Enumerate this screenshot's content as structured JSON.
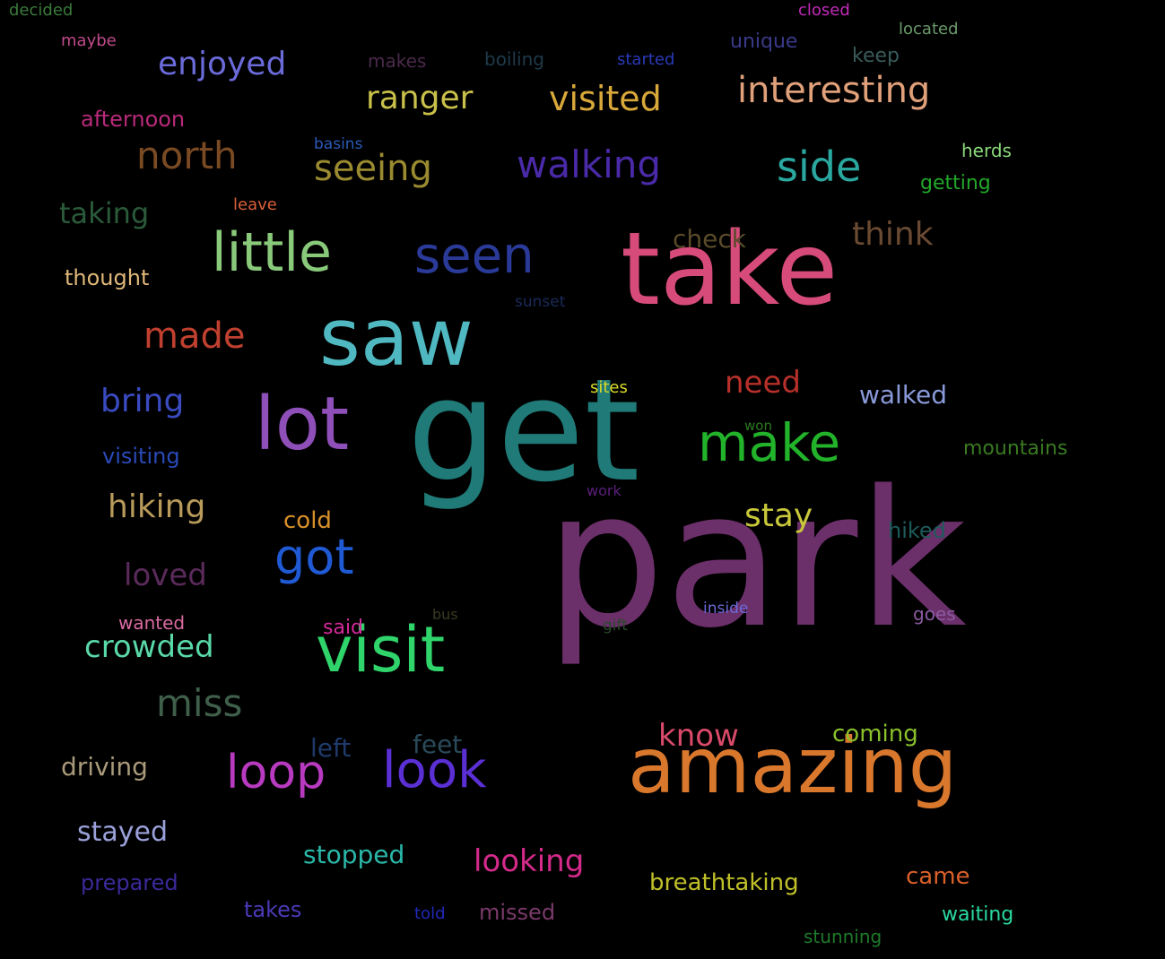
{
  "words": [
    {
      "text": "park",
      "color": "#6b2f6a"
    },
    {
      "text": "get",
      "color": "#1f7a78"
    },
    {
      "text": "take",
      "color": "#d64b7a"
    },
    {
      "text": "saw",
      "color": "#4fb8c0"
    },
    {
      "text": "amazing",
      "color": "#d9782c"
    },
    {
      "text": "visit",
      "color": "#2fd46a"
    },
    {
      "text": "lot",
      "color": "#8f4fb8"
    },
    {
      "text": "make",
      "color": "#22b32a"
    },
    {
      "text": "little",
      "color": "#88c97a"
    },
    {
      "text": "seen",
      "color": "#2a3a99"
    },
    {
      "text": "look",
      "color": "#5a2fd4"
    },
    {
      "text": "got",
      "color": "#1f5ad4"
    },
    {
      "text": "loop",
      "color": "#b83ac0"
    },
    {
      "text": "walking",
      "color": "#4a2aa8"
    },
    {
      "text": "interesting",
      "color": "#e0a07a"
    },
    {
      "text": "side",
      "color": "#2aa8a0"
    },
    {
      "text": "seeing",
      "color": "#9a8a30"
    },
    {
      "text": "north",
      "color": "#7a4a22"
    },
    {
      "text": "miss",
      "color": "#3f5f4a"
    },
    {
      "text": "visited",
      "color": "#d9a83a"
    },
    {
      "text": "ranger",
      "color": "#c8c04a"
    },
    {
      "text": "enjoyed",
      "color": "#6a6ad9"
    },
    {
      "text": "made",
      "color": "#c0402f"
    },
    {
      "text": "stay",
      "color": "#c8c83a"
    },
    {
      "text": "think",
      "color": "#6a4a32"
    },
    {
      "text": "crowded",
      "color": "#5ad9a8"
    },
    {
      "text": "need",
      "color": "#b8302a"
    },
    {
      "text": "bring",
      "color": "#3a4ac0"
    },
    {
      "text": "hiking",
      "color": "#b89a5a"
    },
    {
      "text": "loved",
      "color": "#5a2a5a"
    },
    {
      "text": "know",
      "color": "#d94a6a"
    },
    {
      "text": "looking",
      "color": "#d42a8a"
    },
    {
      "text": "taking",
      "color": "#2a5a3a"
    },
    {
      "text": "walked",
      "color": "#8a9ad9"
    },
    {
      "text": "driving",
      "color": "#a89a7a"
    },
    {
      "text": "stayed",
      "color": "#9aa0d9"
    },
    {
      "text": "stopped",
      "color": "#2ab8a8"
    },
    {
      "text": "check",
      "color": "#5a4a2a"
    },
    {
      "text": "breathtaking",
      "color": "#c0c02a"
    },
    {
      "text": "feet",
      "color": "#2a4a5a"
    },
    {
      "text": "left",
      "color": "#1f3a6a"
    },
    {
      "text": "afternoon",
      "color": "#b82a7a"
    },
    {
      "text": "came",
      "color": "#d9602a"
    },
    {
      "text": "coming",
      "color": "#8ac02a"
    },
    {
      "text": "thought",
      "color": "#e0b87a"
    },
    {
      "text": "visiting",
      "color": "#2a4ab8"
    },
    {
      "text": "cold",
      "color": "#d9902a"
    },
    {
      "text": "hiked",
      "color": "#1f5a5a"
    },
    {
      "text": "prepared",
      "color": "#3a2a9a"
    },
    {
      "text": "missed",
      "color": "#7a3a6a"
    },
    {
      "text": "mountains",
      "color": "#3a7a22"
    },
    {
      "text": "takes",
      "color": "#4a3ab8"
    },
    {
      "text": "getting",
      "color": "#22a82a"
    },
    {
      "text": "waiting",
      "color": "#2ad9a0"
    },
    {
      "text": "wanted",
      "color": "#d96aa0"
    },
    {
      "text": "herds",
      "color": "#8ad97a"
    },
    {
      "text": "said",
      "color": "#d42a9a"
    },
    {
      "text": "goes",
      "color": "#8a5aa0"
    },
    {
      "text": "unique",
      "color": "#3a3a8a"
    },
    {
      "text": "stunning",
      "color": "#1f7a2a"
    },
    {
      "text": "keep",
      "color": "#3a5a5a"
    },
    {
      "text": "makes",
      "color": "#4a2a4a"
    },
    {
      "text": "boiling",
      "color": "#1f3a4a"
    },
    {
      "text": "located",
      "color": "#6a9a6a"
    },
    {
      "text": "started",
      "color": "#2a3ab8"
    },
    {
      "text": "maybe",
      "color": "#c04a8a"
    },
    {
      "text": "decided",
      "color": "#3a7a3a"
    },
    {
      "text": "closed",
      "color": "#c02ab8"
    },
    {
      "text": "sites",
      "color": "#d9d92a"
    },
    {
      "text": "told",
      "color": "#1f2ab8"
    },
    {
      "text": "leave",
      "color": "#d9603a"
    },
    {
      "text": "basins",
      "color": "#2a5ab8"
    },
    {
      "text": "sunset",
      "color": "#1a2a5a"
    },
    {
      "text": "inside",
      "color": "#6a6ad9"
    },
    {
      "text": "gift",
      "color": "#2a4a2a"
    },
    {
      "text": "bus",
      "color": "#3a3a22"
    },
    {
      "text": "won",
      "color": "#2a7a1f"
    },
    {
      "text": "work",
      "color": "#5a1f7a"
    }
  ]
}
